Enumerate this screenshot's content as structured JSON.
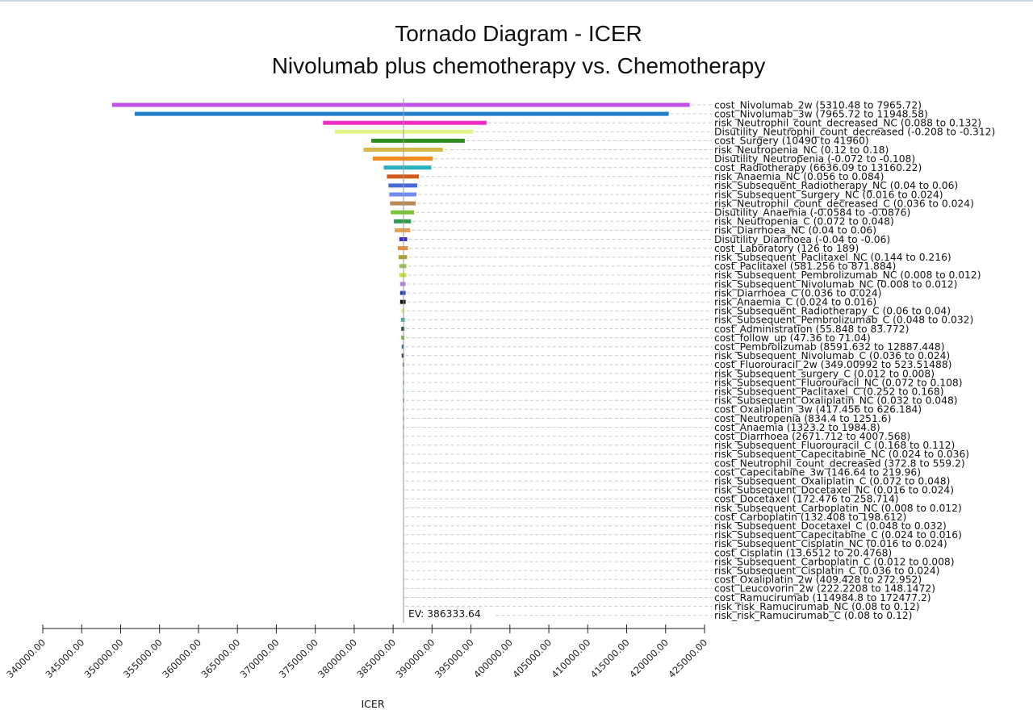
{
  "chart_data": {
    "type": "tornado",
    "title": "Tornado Diagram - ICER",
    "subtitle": "Nivolumab plus chemotherapy vs. Chemotherapy",
    "xlabel": "ICER",
    "xlim": [
      340000,
      425000
    ],
    "x_ticks": [
      "340000.00",
      "345000.00",
      "350000.00",
      "355000.00",
      "360000.00",
      "365000.00",
      "370000.00",
      "375000.00",
      "380000.00",
      "385000.00",
      "390000.00",
      "395000.00",
      "400000.00",
      "405000.00",
      "410000.00",
      "415000.00",
      "420000.00",
      "425000.00"
    ],
    "ev_label": "EV: 386333.64",
    "ev_value": 386333.64,
    "grid": "dashed row guides",
    "bars": [
      {
        "label": "cost_Nivolumab_2w (5310.48 to 7965.72)",
        "low": 348900,
        "high": 423100,
        "color": "#bf53e8"
      },
      {
        "label": "cost_Nivolumab_3w (7965.72 to 11948.58)",
        "low": 351800,
        "high": 420400,
        "color": "#1f7fc9"
      },
      {
        "label": "risk_Neutrophil_count_decreased_NC (0.088 to 0.132)",
        "low": 376000,
        "high": 397000,
        "color": "#f02cc4"
      },
      {
        "label": "Disutility_Neutrophil_count_decreased (-0.208 to -0.312)",
        "low": 377500,
        "high": 395300,
        "color": "#e3f58a"
      },
      {
        "label": "cost_Surgery (10490 to 41960)",
        "low": 382200,
        "high": 394200,
        "color": "#2f8a1f"
      },
      {
        "label": "risk_Neutropenia_NC (0.12 to 0.18)",
        "low": 381200,
        "high": 391400,
        "color": "#d6b84a"
      },
      {
        "label": "Disutility_Neutropenia (-0.072 to -0.108)",
        "low": 382400,
        "high": 390100,
        "color": "#f08a19"
      },
      {
        "label": "cost_Radiotherapy (6636.09 to 13160.22)",
        "low": 383800,
        "high": 389900,
        "color": "#2aaec0"
      },
      {
        "label": "risk_Anaemia_NC (0.056 to 0.084)",
        "low": 384200,
        "high": 388300,
        "color": "#d35a1a"
      },
      {
        "label": "risk_Subsequent_Radiotherapy_NC (0.04 to 0.06)",
        "low": 384400,
        "high": 388100,
        "color": "#4a6ad9"
      },
      {
        "label": "risk_Subsequent_Surgery_NC (0.016 to 0.024)",
        "low": 384500,
        "high": 388000,
        "color": "#6f8cf0"
      },
      {
        "label": "risk_Neutrophil_count_decreased_C (0.036 to 0.024)",
        "low": 384600,
        "high": 387900,
        "color": "#b88a5a"
      },
      {
        "label": "Disutility_Anaemia (-0.0584 to -0.0876)",
        "low": 384700,
        "high": 387700,
        "color": "#7cc23a"
      },
      {
        "label": "risk_Neutropenia_C (0.072 to 0.048)",
        "low": 385100,
        "high": 387300,
        "color": "#2f9a4a"
      },
      {
        "label": "risk_Diarrhoea_NC (0.04 to 0.06)",
        "low": 385200,
        "high": 387200,
        "color": "#e0a050"
      },
      {
        "label": "Disutility_Diarrhoea (-0.04 to -0.06)",
        "low": 385800,
        "high": 386800,
        "color": "#3a2fc0"
      },
      {
        "label": "cost_Laboratory (126 to 189)",
        "low": 385600,
        "high": 386900,
        "color": "#e09040"
      },
      {
        "label": "risk_Subsequent_Paclitaxel_NC (0.144 to 0.216)",
        "low": 385700,
        "high": 386800,
        "color": "#b0a030"
      },
      {
        "label": "cost_Paclitaxel (581.256 to 871.884)",
        "low": 385800,
        "high": 386700,
        "color": "#a0c050"
      },
      {
        "label": "risk_Subsequent_Pembrolizumab_NC (0.008 to 0.012)",
        "low": 385800,
        "high": 386700,
        "color": "#c8e040"
      },
      {
        "label": "risk_Subsequent_Nivolumab_NC (0.008 to 0.012)",
        "low": 385900,
        "high": 386600,
        "color": "#b080e0"
      },
      {
        "label": "risk_Diarrhoea_C (0.036 to 0.024)",
        "low": 385900,
        "high": 386600,
        "color": "#2a40b0"
      },
      {
        "label": "risk_Anaemia_C (0.024 to 0.016)",
        "low": 385900,
        "high": 386600,
        "color": "#101010"
      },
      {
        "label": "risk_Subsequent_Radiotherapy_C (0.06 to 0.04)",
        "low": 386000,
        "high": 386500,
        "color": "#e0f0a0"
      },
      {
        "label": "risk_Subsequent_Pembrolizumab_C (0.048 to 0.032)",
        "low": 386000,
        "high": 386500,
        "color": "#40b0a0"
      },
      {
        "label": "cost_Administration (55.848 to 83.772)",
        "low": 386050,
        "high": 386450,
        "color": "#205030"
      },
      {
        "label": "cost_follow_up (47.36 to 71.04)",
        "low": 386050,
        "high": 386450,
        "color": "#60c040"
      },
      {
        "label": "cost_Pembrolizumab (8591.632 to 12887.448)",
        "low": 386100,
        "high": 386400,
        "color": "#4060c0"
      },
      {
        "label": "risk_Subsequent_Nivolumab_C (0.036 to 0.024)",
        "low": 386100,
        "high": 386400,
        "color": "#303080"
      },
      {
        "label": "cost_Fluorouracil_2w (349.00992 to 523.51488)",
        "low": 386200,
        "high": 386450,
        "color": "#a0a0a0"
      },
      {
        "label": "risk_Subsequent_surgery_C (0.012 to 0.008)",
        "low": 386250,
        "high": 386420,
        "color": "#90c0d0"
      },
      {
        "label": "risk_Subsequent_Fluorouracil_NC (0.072 to 0.108)",
        "low": 386250,
        "high": 386420,
        "color": "#60a0a0"
      },
      {
        "label": "risk_Subsequent_Paclitaxel_C (0.252 to 0.168)",
        "low": 386250,
        "high": 386420,
        "color": "#80d0c0"
      },
      {
        "label": "risk_Subsequent_Oxaliplatin_NC (0.032 to 0.048)",
        "low": 386250,
        "high": 386420,
        "color": "#40a080"
      },
      {
        "label": "cost_Oxaliplatin_3w (417.456 to 626.184)",
        "low": 386260,
        "high": 386410,
        "color": "#c0a080"
      },
      {
        "label": "cost_Neutropenia (834.4 to 1251.6)",
        "low": 386260,
        "high": 386410,
        "color": "#c060a0"
      },
      {
        "label": "cost_Anaemia (1323.2 to 1984.8)",
        "low": 386260,
        "high": 386410,
        "color": "#8080c0"
      },
      {
        "label": "cost_Diarrhoea (2671.712 to 4007.568)",
        "low": 386270,
        "high": 386400,
        "color": "#a06040"
      },
      {
        "label": "risk_Subsequent_Fluorouracil_C (0.168 to 0.112)",
        "low": 386270,
        "high": 386400,
        "color": "#e0a0c0"
      },
      {
        "label": "risk_Subsequent_Capecitabine_NC (0.024 to 0.036)",
        "low": 386270,
        "high": 386400,
        "color": "#e08040"
      },
      {
        "label": "cost_Neutrophil_count_decreased (372.8 to 559.2)",
        "low": 386270,
        "high": 386400,
        "color": "#4080e0"
      },
      {
        "label": "cost_Capecitabine_3w (146.64 to 219.96)",
        "low": 386280,
        "high": 386390,
        "color": "#b0d080"
      },
      {
        "label": "risk_Subsequent_Oxaliplatin_C (0.072 to 0.048)",
        "low": 386280,
        "high": 386390,
        "color": "#60c0e0"
      },
      {
        "label": "risk_Subsequent_Docetaxel_NC (0.016 to 0.024)",
        "low": 386280,
        "high": 386390,
        "color": "#6040c0"
      },
      {
        "label": "cost_Docetaxel (172.476 to 258.714)",
        "low": 386290,
        "high": 386380,
        "color": "#c0c0c0"
      },
      {
        "label": "risk_Subsequent_Carboplatin_NC (0.008 to 0.012)",
        "low": 386290,
        "high": 386380,
        "color": "#80a060"
      },
      {
        "label": "cost_Carboplatin (132.408 to 198.612)",
        "low": 386290,
        "high": 386380,
        "color": "#a0c0a0"
      },
      {
        "label": "risk_Subsequent_Docetaxel_C (0.048 to 0.032)",
        "low": 386300,
        "high": 386370,
        "color": "#c0e0c0"
      },
      {
        "label": "risk_Subsequent_Capecitabine_C (0.024 to 0.016)",
        "low": 386300,
        "high": 386370,
        "color": "#a0a0e0"
      },
      {
        "label": "risk_Subsequent_Cisplatin_NC (0.016 to 0.024)",
        "low": 386300,
        "high": 386370,
        "color": "#e040a0"
      },
      {
        "label": "cost_Cisplatin (13.6512 to 20.4768)",
        "low": 386310,
        "high": 386360,
        "color": "#d0d0d0"
      },
      {
        "label": "risk_Subsequent_Carboplatin_C (0.012 to 0.008)",
        "low": 386310,
        "high": 386360,
        "color": "#c0c0e0"
      },
      {
        "label": "risk_Subsequent_Cisplatin_C (0.036 to 0.024)",
        "low": 386310,
        "high": 386360,
        "color": "#e0e0e0"
      },
      {
        "label": "cost_Oxaliplatin_2w (409.428 to 272.952)",
        "low": 386320,
        "high": 386350,
        "color": "#d0d0d0"
      },
      {
        "label": "cost_Leucovorin_2w (222.2208 to 148.1472)",
        "low": 386320,
        "high": 386350,
        "color": "#d0d0d0"
      },
      {
        "label": "cost_Ramucirumab (114984.8 to 172477.2)",
        "low": 386320,
        "high": 386345,
        "color": "#d0d0d0"
      },
      {
        "label": "risk_risk_Ramucirumab_NC (0.08 to 0.12)",
        "low": 386325,
        "high": 386342,
        "color": "#e0e0e0"
      },
      {
        "label": "risk_risk_Ramucirumab_C (0.08 to 0.12)",
        "low": 386325,
        "high": 386342,
        "color": "#e0e0e0"
      }
    ]
  }
}
